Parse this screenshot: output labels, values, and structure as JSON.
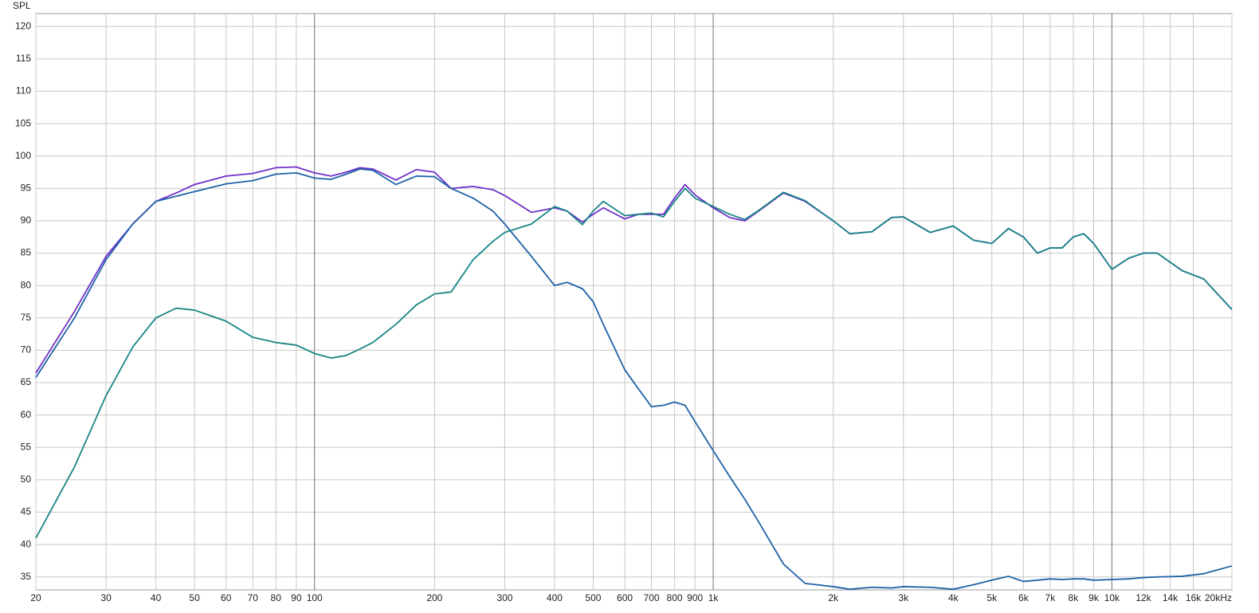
{
  "chart_data": {
    "type": "line",
    "y_label": "SPL",
    "xscale": "log",
    "xlim": [
      20,
      20000
    ],
    "ylim": [
      33,
      122
    ],
    "xticks": [
      20,
      30,
      40,
      50,
      60,
      70,
      80,
      90,
      100,
      200,
      300,
      400,
      500,
      600,
      700,
      800,
      900,
      {
        "value": 1000,
        "label": "1k"
      },
      {
        "value": 2000,
        "label": "2k"
      },
      {
        "value": 3000,
        "label": "3k"
      },
      {
        "value": 4000,
        "label": "4k"
      },
      {
        "value": 5000,
        "label": "5k"
      },
      {
        "value": 6000,
        "label": "6k"
      },
      {
        "value": 7000,
        "label": "7k"
      },
      {
        "value": 8000,
        "label": "8k"
      },
      {
        "value": 9000,
        "label": "9k"
      },
      {
        "value": 10000,
        "label": "10k"
      },
      {
        "value": 12000,
        "label": "12k"
      },
      {
        "value": 14000,
        "label": "14k"
      },
      {
        "value": 16000,
        "label": "16k"
      },
      {
        "value": 20000,
        "label": "20kHz"
      }
    ],
    "yticks": [
      35,
      40,
      45,
      50,
      55,
      60,
      65,
      70,
      75,
      80,
      85,
      90,
      95,
      100,
      105,
      110,
      115,
      120
    ],
    "grid": true,
    "x": [
      20,
      25,
      30,
      35,
      40,
      45,
      50,
      60,
      70,
      80,
      90,
      100,
      110,
      120,
      130,
      140,
      160,
      180,
      200,
      220,
      250,
      280,
      300,
      350,
      400,
      430,
      470,
      500,
      530,
      600,
      650,
      700,
      750,
      800,
      850,
      900,
      1000,
      1100,
      1200,
      1300,
      1500,
      1700,
      2000,
      2200,
      2500,
      2800,
      3000,
      3500,
      4000,
      4500,
      5000,
      5500,
      6000,
      6500,
      7000,
      7500,
      8000,
      8500,
      9000,
      10000,
      11000,
      12000,
      13000,
      15000,
      17000,
      20000
    ],
    "series": [
      {
        "color": "#7030c8",
        "values": [
          66.5,
          76,
          84.5,
          89.5,
          93,
          94.3,
          95.6,
          96.9,
          97.3,
          98.2,
          98.3,
          97.4,
          96.9,
          97.5,
          98.2,
          98.0,
          96.3,
          97.9,
          97.5,
          95.0,
          95.3,
          94.8,
          93.9,
          91.3,
          92.0,
          91.5,
          89.8,
          91.0,
          92.0,
          90.3,
          91.0,
          91.0,
          91.0,
          93.5,
          95.6,
          94.0,
          92.0,
          90.5,
          90.0,
          91.5,
          94.3,
          93.0,
          90.0,
          88.0,
          88.3,
          90.5,
          90.6,
          88.2,
          89.2,
          87.0,
          86.5,
          88.8,
          87.5,
          85.0,
          85.8,
          85.8,
          87.5,
          88.0,
          86.5,
          82.5,
          84.2,
          85.0,
          85.0,
          82.3,
          81.0,
          76.3
        ]
      },
      {
        "color": "#1f62a8",
        "values": [
          65.8,
          75,
          84,
          89.5,
          93,
          93.8,
          94.5,
          95.7,
          96.2,
          97.2,
          97.4,
          96.6,
          96.4,
          97.2,
          98.0,
          97.8,
          95.6,
          96.9,
          96.8,
          95.0,
          93.5,
          91.5,
          89.5,
          84.5,
          80.0,
          80.5,
          79.5,
          77.5,
          74,
          67,
          64,
          61.3,
          61.5,
          62,
          61.5,
          59,
          54.5,
          50.5,
          47,
          43.5,
          37,
          34,
          33.5,
          33.1,
          33.4,
          33.3,
          33.5,
          33.4,
          33.1,
          33.8,
          34.5,
          35.1,
          34.3,
          34.5,
          34.7,
          34.6,
          34.7,
          34.7,
          34.5,
          34.6,
          34.7,
          34.9,
          35.0,
          35.1,
          35.5,
          36.7
        ]
      },
      {
        "color": "#1a8585",
        "values": [
          41,
          52,
          63,
          70.5,
          75,
          76.5,
          76.2,
          74.5,
          72,
          71.2,
          70.8,
          69.5,
          68.8,
          69.2,
          70.2,
          71.2,
          74.0,
          77,
          78.7,
          79,
          84,
          86.8,
          88.2,
          89.5,
          92.2,
          91.5,
          89.4,
          91.5,
          93.0,
          90.8,
          91.0,
          91.2,
          90.6,
          93,
          95.0,
          93.5,
          92.2,
          91.0,
          90.2,
          91.6,
          94.4,
          93.1,
          90.0,
          88.0,
          88.3,
          90.5,
          90.6,
          88.2,
          89.2,
          87.0,
          86.5,
          88.8,
          87.5,
          85.0,
          85.8,
          85.8,
          87.5,
          88.0,
          86.5,
          82.5,
          84.2,
          85.0,
          85.0,
          82.3,
          81.0,
          76.3
        ]
      }
    ]
  }
}
